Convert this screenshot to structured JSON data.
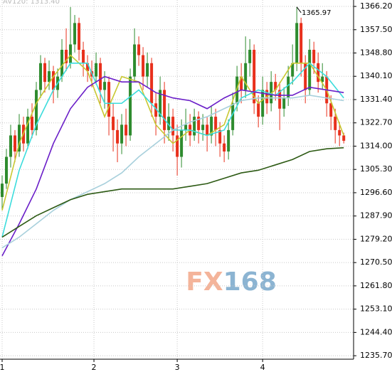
{
  "chart_data": {
    "type": "candlestick",
    "subtitle": "AV120: 1313.40",
    "annotation": "1365.97",
    "watermark": [
      "FX",
      "168"
    ],
    "xlim": [
      -0.5,
      82.3
    ],
    "ylim": [
      1234.4,
      1368.6
    ],
    "xticks": [
      {
        "value": 0,
        "label": "1"
      },
      {
        "value": 21.5,
        "label": "2"
      },
      {
        "value": 41,
        "label": "3"
      },
      {
        "value": 61,
        "label": "4"
      }
    ],
    "yticks": [
      {
        "value": 1366.2,
        "label": "1366.20"
      },
      {
        "value": 1357.5,
        "label": "1357.50"
      },
      {
        "value": 1348.8,
        "label": "1348.80"
      },
      {
        "value": 1340.1,
        "label": "1340.10"
      },
      {
        "value": 1331.4,
        "label": "1331.40"
      },
      {
        "value": 1322.7,
        "label": "1322.70"
      },
      {
        "value": 1314,
        "label": "1314.00"
      },
      {
        "value": 1305.3,
        "label": "1305.30"
      },
      {
        "value": 1296.6,
        "label": "1296.60"
      },
      {
        "value": 1287.9,
        "label": "1287.90"
      },
      {
        "value": 1279.2,
        "label": "1279.20"
      },
      {
        "value": 1270.5,
        "label": "1270.50"
      },
      {
        "value": 1261.8,
        "label": "1261.80"
      },
      {
        "value": 1253.1,
        "label": "1253.10"
      },
      {
        "value": 1244.4,
        "label": "1244.40"
      },
      {
        "value": 1235.7,
        "label": "1235.70"
      }
    ],
    "grid": true,
    "candles": {
      "up_color": "#2e8b2e",
      "down_color": "#e8301c",
      "x": [
        0,
        1,
        2,
        3,
        4,
        5,
        6,
        7,
        8,
        9,
        10,
        11,
        12,
        13,
        14,
        15,
        16,
        17,
        18,
        19,
        20,
        21,
        22,
        23,
        24,
        25,
        26,
        27,
        28,
        29,
        30,
        31,
        32,
        33,
        34,
        35,
        36,
        37,
        38,
        39,
        40,
        41,
        42,
        43,
        44,
        45,
        46,
        47,
        48,
        49,
        50,
        51,
        52,
        53,
        54,
        55,
        56,
        57,
        58,
        59,
        60,
        61,
        62,
        63,
        64,
        65,
        66,
        67,
        68,
        69,
        70,
        71,
        72,
        73,
        74,
        75,
        76,
        77,
        78,
        79,
        80
      ],
      "open": [
        1295,
        1300,
        1310,
        1318,
        1312,
        1322,
        1315,
        1325,
        1320,
        1335,
        1345,
        1338,
        1342,
        1335,
        1340,
        1350,
        1345,
        1352,
        1360,
        1350,
        1345,
        1342,
        1340,
        1345,
        1335,
        1338,
        1325,
        1320,
        1315,
        1322,
        1318,
        1340,
        1352,
        1348,
        1340,
        1345,
        1330,
        1325,
        1335,
        1320,
        1325,
        1318,
        1310,
        1320,
        1322,
        1318,
        1325,
        1320,
        1322,
        1318,
        1325,
        1320,
        1315,
        1312,
        1320,
        1330,
        1340,
        1335,
        1345,
        1350,
        1330,
        1325,
        1335,
        1330,
        1338,
        1335,
        1328,
        1332,
        1340,
        1345,
        1360,
        1345,
        1335,
        1350,
        1345,
        1338,
        1340,
        1330,
        1325,
        1320,
        1318
      ],
      "high": [
        1303,
        1313,
        1322,
        1320,
        1326,
        1325,
        1328,
        1330,
        1338,
        1348,
        1347,
        1346,
        1344,
        1343,
        1354,
        1358,
        1365.97,
        1363,
        1362,
        1353,
        1348,
        1346,
        1349,
        1347,
        1342,
        1340,
        1330,
        1324,
        1326,
        1328,
        1343,
        1358,
        1355,
        1351,
        1349,
        1347,
        1334,
        1340,
        1338,
        1330,
        1328,
        1322,
        1324,
        1328,
        1326,
        1328,
        1327,
        1326,
        1325,
        1329,
        1328,
        1323,
        1318,
        1324,
        1334,
        1344,
        1345,
        1355,
        1354,
        1352,
        1333,
        1340,
        1338,
        1342,
        1341,
        1338,
        1336,
        1344,
        1352,
        1366,
        1362,
        1348,
        1354,
        1353,
        1349,
        1345,
        1342,
        1333,
        1328,
        1323,
        1319
      ],
      "low": [
        1290,
        1298,
        1306,
        1308,
        1310,
        1312,
        1313,
        1317,
        1318,
        1332,
        1334,
        1335,
        1330,
        1332,
        1338,
        1342,
        1343,
        1349,
        1346,
        1340,
        1338,
        1336,
        1337,
        1330,
        1328,
        1318,
        1312,
        1308,
        1311,
        1314,
        1316,
        1338,
        1344,
        1335,
        1336,
        1325,
        1318,
        1322,
        1315,
        1316,
        1312,
        1303,
        1306,
        1316,
        1314,
        1316,
        1315,
        1316,
        1312,
        1315,
        1314,
        1310,
        1308,
        1309,
        1318,
        1327,
        1330,
        1332,
        1340,
        1326,
        1321,
        1322,
        1326,
        1327,
        1331,
        1320,
        1325,
        1329,
        1337,
        1342,
        1340,
        1330,
        1333,
        1341,
        1334,
        1335,
        1325,
        1320,
        1315,
        1314,
        1315
      ],
      "close": [
        1300,
        1310,
        1318,
        1312,
        1322,
        1315,
        1325,
        1320,
        1335,
        1345,
        1338,
        1342,
        1335,
        1340,
        1350,
        1345,
        1352,
        1360,
        1350,
        1345,
        1342,
        1340,
        1345,
        1335,
        1338,
        1325,
        1320,
        1315,
        1322,
        1318,
        1340,
        1352,
        1348,
        1340,
        1345,
        1330,
        1325,
        1335,
        1320,
        1325,
        1318,
        1310,
        1320,
        1322,
        1318,
        1325,
        1320,
        1322,
        1318,
        1325,
        1320,
        1315,
        1312,
        1320,
        1330,
        1340,
        1335,
        1345,
        1350,
        1330,
        1325,
        1335,
        1330,
        1338,
        1335,
        1328,
        1332,
        1340,
        1345,
        1360,
        1345,
        1335,
        1350,
        1345,
        1338,
        1340,
        1330,
        1325,
        1320,
        1318,
        1316
      ]
    },
    "series": [
      {
        "color": "#c8c832",
        "x": [
          0,
          4,
          8,
          12,
          16,
          20,
          24,
          28,
          32,
          36,
          40,
          44,
          48,
          52,
          56,
          60,
          64,
          68,
          72,
          76,
          80
        ],
        "values": [
          1290,
          1315,
          1330,
          1340,
          1348,
          1342,
          1325,
          1340,
          1338,
          1322,
          1315,
          1320,
          1318,
          1322,
          1340,
          1330,
          1335,
          1345,
          1345,
          1335,
          1318
        ]
      },
      {
        "color": "#3cdcdc",
        "x": [
          0,
          4,
          8,
          12,
          16,
          20,
          24,
          28,
          32,
          36,
          40,
          44,
          48,
          52,
          56,
          60,
          64,
          68,
          72,
          76,
          80
        ],
        "values": [
          1280,
          1305,
          1322,
          1335,
          1345,
          1345,
          1330,
          1330,
          1335,
          1328,
          1320,
          1320,
          1318,
          1320,
          1332,
          1335,
          1333,
          1338,
          1345,
          1340,
          1332
        ]
      },
      {
        "color": "#6a1ec8",
        "x": [
          0,
          4,
          8,
          12,
          16,
          20,
          24,
          28,
          32,
          36,
          40,
          44,
          48,
          52,
          56,
          60,
          64,
          68,
          72,
          76,
          80
        ],
        "values": [
          1273,
          1285,
          1298,
          1315,
          1328,
          1336,
          1340,
          1338,
          1338,
          1334,
          1332,
          1331,
          1328,
          1332,
          1335,
          1334,
          1333,
          1333,
          1336,
          1335,
          1334
        ]
      },
      {
        "color": "#a8d0dc",
        "x": [
          0,
          4,
          8,
          12,
          16,
          20,
          24,
          28,
          32,
          36,
          40,
          44,
          48,
          52,
          56,
          60,
          64,
          68,
          72,
          76,
          80
        ],
        "values": [
          1276,
          1280,
          1285,
          1290,
          1294,
          1297,
          1300,
          1304,
          1310,
          1315,
          1320,
          1323,
          1325,
          1328,
          1331,
          1332,
          1332,
          1332,
          1333,
          1332,
          1331
        ]
      },
      {
        "color": "#2d5a14",
        "x": [
          0,
          4,
          8,
          12,
          16,
          20,
          24,
          28,
          32,
          36,
          40,
          44,
          48,
          52,
          56,
          60,
          64,
          68,
          72,
          76,
          80
        ],
        "values": [
          1280,
          1284,
          1288,
          1291,
          1294,
          1296,
          1297,
          1298,
          1298,
          1298,
          1298,
          1299,
          1300,
          1302,
          1304,
          1305,
          1307,
          1309,
          1312,
          1313,
          1313.4
        ]
      }
    ]
  }
}
